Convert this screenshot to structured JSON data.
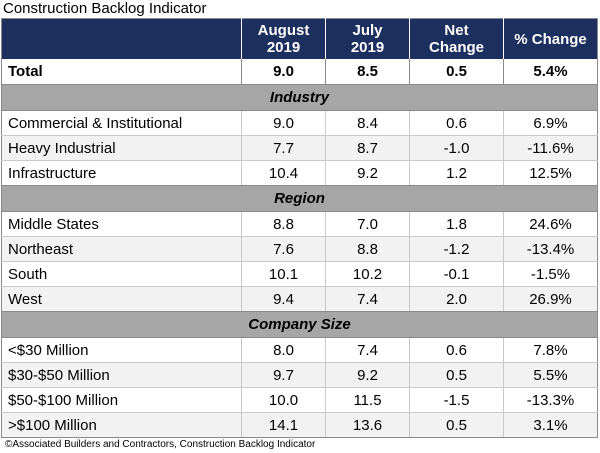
{
  "title": "Construction Backlog Indicator",
  "source": "©Associated Builders and Contractors, Construction Backlog Indicator",
  "header": {
    "col1_line1": "August",
    "col1_line2": "2019",
    "col2_line1": "July",
    "col2_line2": "2019",
    "col3_line1": "Net",
    "col3_line2": "Change",
    "col4": "% Change"
  },
  "total": {
    "label": "Total",
    "aug": "9.0",
    "jul": "8.5",
    "net": "0.5",
    "pct": "5.4%"
  },
  "sections": [
    {
      "name": "Industry",
      "rows": [
        {
          "label": "Commercial & Institutional",
          "aug": "9.0",
          "jul": "8.4",
          "net": "0.6",
          "pct": "6.9%"
        },
        {
          "label": "Heavy Industrial",
          "aug": "7.7",
          "jul": "8.7",
          "net": "-1.0",
          "pct": "-11.6%"
        },
        {
          "label": "Infrastructure",
          "aug": "10.4",
          "jul": "9.2",
          "net": "1.2",
          "pct": "12.5%"
        }
      ]
    },
    {
      "name": "Region",
      "rows": [
        {
          "label": "Middle States",
          "aug": "8.8",
          "jul": "7.0",
          "net": "1.8",
          "pct": "24.6%"
        },
        {
          "label": "Northeast",
          "aug": "7.6",
          "jul": "8.8",
          "net": "-1.2",
          "pct": "-13.4%"
        },
        {
          "label": "South",
          "aug": "10.1",
          "jul": "10.2",
          "net": "-0.1",
          "pct": "-1.5%"
        },
        {
          "label": "West",
          "aug": "9.4",
          "jul": "7.4",
          "net": "2.0",
          "pct": "26.9%"
        }
      ]
    },
    {
      "name": "Company Size",
      "rows": [
        {
          "label": "<$30 Million",
          "aug": "8.0",
          "jul": "7.4",
          "net": "0.6",
          "pct": "7.8%"
        },
        {
          "label": "$30-$50 Million",
          "aug": "9.7",
          "jul": "9.2",
          "net": "0.5",
          "pct": "5.5%"
        },
        {
          "label": "$50-$100 Million",
          "aug": "10.0",
          "jul": "11.5",
          "net": "-1.5",
          "pct": "-13.3%"
        },
        {
          "label": ">$100 Million",
          "aug": "14.1",
          "jul": "13.6",
          "net": "0.5",
          "pct": "3.1%"
        }
      ]
    }
  ],
  "colors": {
    "header_bg": "#1c2f5e",
    "section_bg": "#a6a6a6",
    "alt_row_bg": "#f2f2f2"
  },
  "chart_data": {
    "type": "table",
    "title": "Construction Backlog Indicator",
    "columns": [
      "August 2019",
      "July 2019",
      "Net Change",
      "% Change"
    ],
    "rows": [
      {
        "group": "",
        "label": "Total",
        "values": [
          9.0,
          8.5,
          0.5,
          5.4
        ]
      },
      {
        "group": "Industry",
        "label": "Commercial & Institutional",
        "values": [
          9.0,
          8.4,
          0.6,
          6.9
        ]
      },
      {
        "group": "Industry",
        "label": "Heavy Industrial",
        "values": [
          7.7,
          8.7,
          -1.0,
          -11.6
        ]
      },
      {
        "group": "Industry",
        "label": "Infrastructure",
        "values": [
          10.4,
          9.2,
          1.2,
          12.5
        ]
      },
      {
        "group": "Region",
        "label": "Middle States",
        "values": [
          8.8,
          7.0,
          1.8,
          24.6
        ]
      },
      {
        "group": "Region",
        "label": "Northeast",
        "values": [
          7.6,
          8.8,
          -1.2,
          -13.4
        ]
      },
      {
        "group": "Region",
        "label": "South",
        "values": [
          10.1,
          10.2,
          -0.1,
          -1.5
        ]
      },
      {
        "group": "Region",
        "label": "West",
        "values": [
          9.4,
          7.4,
          2.0,
          26.9
        ]
      },
      {
        "group": "Company Size",
        "label": "<$30 Million",
        "values": [
          8.0,
          7.4,
          0.6,
          7.8
        ]
      },
      {
        "group": "Company Size",
        "label": "$30-$50 Million",
        "values": [
          9.7,
          9.2,
          0.5,
          5.5
        ]
      },
      {
        "group": "Company Size",
        "label": "$50-$100 Million",
        "values": [
          10.0,
          11.5,
          -1.5,
          -13.3
        ]
      },
      {
        "group": "Company Size",
        "label": ">$100 Million",
        "values": [
          14.1,
          13.6,
          0.5,
          3.1
        ]
      }
    ]
  }
}
